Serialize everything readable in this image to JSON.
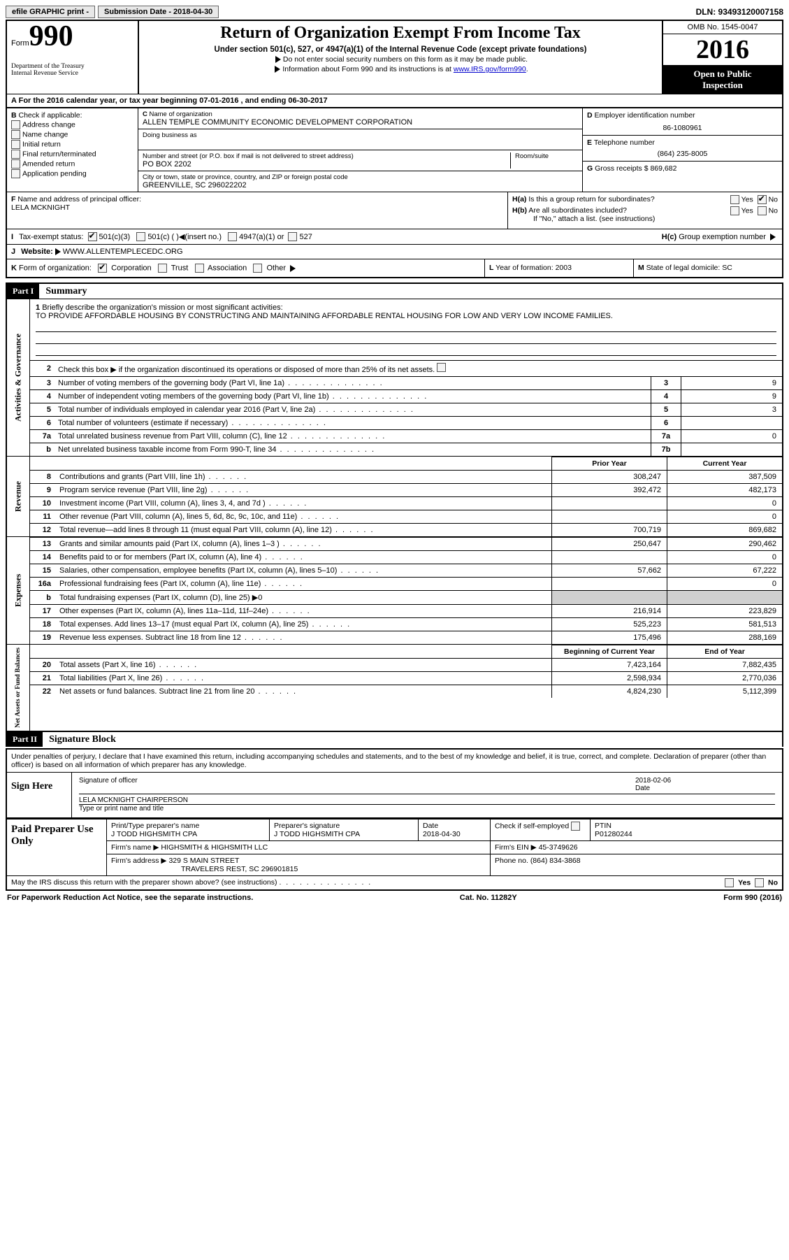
{
  "topbar": {
    "efile": "efile GRAPHIC print - ",
    "submission": "Submission Date - 2018-04-30",
    "dln": "DLN: 93493120007158"
  },
  "header": {
    "form_label": "Form",
    "form_number": "990",
    "dept1": "Department of the Treasury",
    "dept2": "Internal Revenue Service",
    "title": "Return of Organization Exempt From Income Tax",
    "subtitle": "Under section 501(c), 527, or 4947(a)(1) of the Internal Revenue Code (except private foundations)",
    "arrow1": "Do not enter social security numbers on this form as it may be made public.",
    "arrow2_pre": "Information about Form 990 and its instructions is at ",
    "arrow2_link": "www.IRS.gov/form990",
    "omb": "OMB No. 1545-0047",
    "year": "2016",
    "open1": "Open to Public",
    "open2": "Inspection"
  },
  "A": {
    "text": "For the 2016 calendar year, or tax year beginning 07-01-2016    , and ending 06-30-2017"
  },
  "B": {
    "label": "Check if applicable:",
    "opts": [
      "Address change",
      "Name change",
      "Initial return",
      "Final return/terminated",
      "Amended return",
      "Application pending"
    ]
  },
  "C": {
    "name_lbl": "Name of organization",
    "name": "ALLEN TEMPLE COMMUNITY ECONOMIC DEVELOPMENT CORPORATION",
    "dba_lbl": "Doing business as",
    "street_lbl": "Number and street (or P.O. box if mail is not delivered to street address)",
    "room_lbl": "Room/suite",
    "street": "PO BOX 2202",
    "city_lbl": "City or town, state or province, country, and ZIP or foreign postal code",
    "city": "GREENVILLE, SC  296022202"
  },
  "D": {
    "lbl": "Employer identification number",
    "val": "86-1080961"
  },
  "E": {
    "lbl": "Telephone number",
    "val": "(864) 235-8005"
  },
  "G": {
    "lbl": "Gross receipts $",
    "val": "869,682"
  },
  "F": {
    "lbl": "Name and address of principal officer:",
    "val": "LELA MCKNIGHT"
  },
  "H": {
    "a": "Is this a group return for subordinates?",
    "b": "Are all subordinates included?",
    "b2": "If \"No,\" attach a list. (see instructions)",
    "c": "Group exemption number",
    "yes": "Yes",
    "no": "No"
  },
  "I": {
    "lbl": "Tax-exempt status:",
    "o1": "501(c)(3)",
    "o2": "501(c) (   )",
    "o2b": "(insert no.)",
    "o3": "4947(a)(1) or",
    "o4": "527"
  },
  "J": {
    "lbl": "Website:",
    "val": "WWW.ALLENTEMPLECEDC.ORG"
  },
  "K": {
    "lbl": "Form of organization:",
    "o1": "Corporation",
    "o2": "Trust",
    "o3": "Association",
    "o4": "Other"
  },
  "L": {
    "lbl": "Year of formation:",
    "val": "2003"
  },
  "M": {
    "lbl": "State of legal domicile:",
    "val": "SC"
  },
  "part1": {
    "hdr": "Part I",
    "title": "Summary"
  },
  "mission": {
    "q": "Briefly describe the organization's mission or most significant activities:",
    "text": "TO PROVIDE AFFORDABLE HOUSING BY CONSTRUCTING AND MAINTAINING AFFORDABLE RENTAL HOUSING FOR LOW AND VERY LOW INCOME FAMILIES."
  },
  "line2": "Check this box ▶       if the organization discontinued its operations or disposed of more than 25% of its net assets.",
  "gov_rows": [
    {
      "n": "3",
      "d": "Number of voting members of the governing body (Part VI, line 1a)",
      "b": "3",
      "v": "9"
    },
    {
      "n": "4",
      "d": "Number of independent voting members of the governing body (Part VI, line 1b)",
      "b": "4",
      "v": "9"
    },
    {
      "n": "5",
      "d": "Total number of individuals employed in calendar year 2016 (Part V, line 2a)",
      "b": "5",
      "v": "3"
    },
    {
      "n": "6",
      "d": "Total number of volunteers (estimate if necessary)",
      "b": "6",
      "v": ""
    },
    {
      "n": "7a",
      "d": "Total unrelated business revenue from Part VIII, column (C), line 12",
      "b": "7a",
      "v": "0"
    },
    {
      "n": "b",
      "d": "Net unrelated business taxable income from Form 990-T, line 34",
      "b": "7b",
      "v": ""
    }
  ],
  "col_hdr": {
    "py": "Prior Year",
    "cy": "Current Year",
    "boy": "Beginning of Current Year",
    "eoy": "End of Year"
  },
  "rev_rows": [
    {
      "n": "8",
      "d": "Contributions and grants (Part VIII, line 1h)",
      "py": "308,247",
      "cy": "387,509"
    },
    {
      "n": "9",
      "d": "Program service revenue (Part VIII, line 2g)",
      "py": "392,472",
      "cy": "482,173"
    },
    {
      "n": "10",
      "d": "Investment income (Part VIII, column (A), lines 3, 4, and 7d )",
      "py": "",
      "cy": "0"
    },
    {
      "n": "11",
      "d": "Other revenue (Part VIII, column (A), lines 5, 6d, 8c, 9c, 10c, and 11e)",
      "py": "",
      "cy": "0"
    },
    {
      "n": "12",
      "d": "Total revenue—add lines 8 through 11 (must equal Part VIII, column (A), line 12)",
      "py": "700,719",
      "cy": "869,682"
    }
  ],
  "exp_rows": [
    {
      "n": "13",
      "d": "Grants and similar amounts paid (Part IX, column (A), lines 1–3 )",
      "py": "250,647",
      "cy": "290,462"
    },
    {
      "n": "14",
      "d": "Benefits paid to or for members (Part IX, column (A), line 4)",
      "py": "",
      "cy": "0"
    },
    {
      "n": "15",
      "d": "Salaries, other compensation, employee benefits (Part IX, column (A), lines 5–10)",
      "py": "57,662",
      "cy": "67,222"
    },
    {
      "n": "16a",
      "d": "Professional fundraising fees (Part IX, column (A), line 11e)",
      "py": "",
      "cy": "0"
    },
    {
      "n": "b",
      "d": "Total fundraising expenses (Part IX, column (D), line 25) ▶0",
      "py": "SHADE",
      "cy": "SHADE"
    },
    {
      "n": "17",
      "d": "Other expenses (Part IX, column (A), lines 11a–11d, 11f–24e)",
      "py": "216,914",
      "cy": "223,829"
    },
    {
      "n": "18",
      "d": "Total expenses. Add lines 13–17 (must equal Part IX, column (A), line 25)",
      "py": "525,223",
      "cy": "581,513"
    },
    {
      "n": "19",
      "d": "Revenue less expenses. Subtract line 18 from line 12",
      "py": "175,496",
      "cy": "288,169"
    }
  ],
  "na_rows": [
    {
      "n": "20",
      "d": "Total assets (Part X, line 16)",
      "py": "7,423,164",
      "cy": "7,882,435"
    },
    {
      "n": "21",
      "d": "Total liabilities (Part X, line 26)",
      "py": "2,598,934",
      "cy": "2,770,036"
    },
    {
      "n": "22",
      "d": "Net assets or fund balances. Subtract line 21 from line 20",
      "py": "4,824,230",
      "cy": "5,112,399"
    }
  ],
  "vtabs": {
    "gov": "Activities & Governance",
    "rev": "Revenue",
    "exp": "Expenses",
    "na": "Net Assets or Fund Balances"
  },
  "part2": {
    "hdr": "Part II",
    "title": "Signature Block"
  },
  "sig": {
    "decl": "Under penalties of perjury, I declare that I have examined this return, including accompanying schedules and statements, and to the best of my knowledge and belief, it is true, correct, and complete. Declaration of preparer (other than officer) is based on all information of which preparer has any knowledge.",
    "here": "Sign Here",
    "sig_of": "Signature of officer",
    "date_lbl": "Date",
    "date": "2018-02-06",
    "name": "LELA MCKNIGHT CHAIRPERSON",
    "type_lbl": "Type or print name and title"
  },
  "prep": {
    "lbl": "Paid Preparer Use Only",
    "name_lbl": "Print/Type preparer's name",
    "name": "J TODD HIGHSMITH CPA",
    "sig_lbl": "Preparer's signature",
    "sig": "J TODD HIGHSMITH CPA",
    "date_lbl": "Date",
    "date": "2018-04-30",
    "check_lbl": "Check         if self-employed",
    "ptin_lbl": "PTIN",
    "ptin": "P01280244",
    "firm_lbl": "Firm's name     ▶",
    "firm": "HIGHSMITH & HIGHSMITH LLC",
    "ein_lbl": "Firm's EIN ▶",
    "ein": "45-3749626",
    "addr_lbl": "Firm's address ▶",
    "addr": "329 S MAIN STREET",
    "addr2": "TRAVELERS REST, SC  296901815",
    "phone_lbl": "Phone no.",
    "phone": "(864) 834-3868",
    "discuss": "May the IRS discuss this return with the preparer shown above? (see instructions)"
  },
  "footer": {
    "pra": "For Paperwork Reduction Act Notice, see the separate instructions.",
    "cat": "Cat. No. 11282Y",
    "form": "Form 990 (2016)"
  }
}
